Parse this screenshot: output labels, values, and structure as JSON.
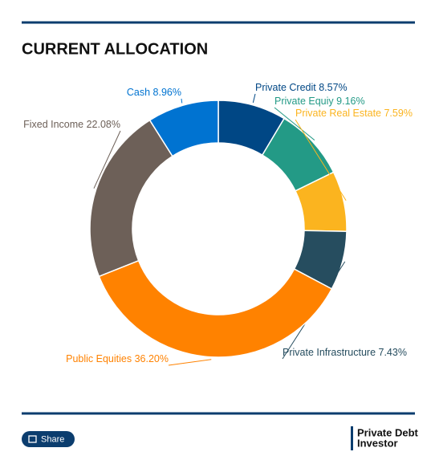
{
  "chart_data": {
    "type": "donut",
    "title": "CURRENT ALLOCATION",
    "categories": [
      "Private Credit",
      "Private Equiy",
      "Private Real Estate",
      "Private Infrastructure",
      "Public Equities",
      "Fixed Income",
      "Cash"
    ],
    "values": [
      8.57,
      9.16,
      7.59,
      7.43,
      36.2,
      22.08,
      8.96
    ],
    "value_labels": [
      "8.57%",
      "9.16%",
      "7.59%",
      "7.43%",
      "36.20%",
      "22.08%",
      "8.96%"
    ],
    "colors": [
      "#004785",
      "#239a86",
      "#fbb41f",
      "#264d5f",
      "#ff8200",
      "#6d6058",
      "#0073d1"
    ]
  },
  "page": {
    "share": "Share",
    "logo": [
      "Private Debt",
      "Investor"
    ]
  }
}
